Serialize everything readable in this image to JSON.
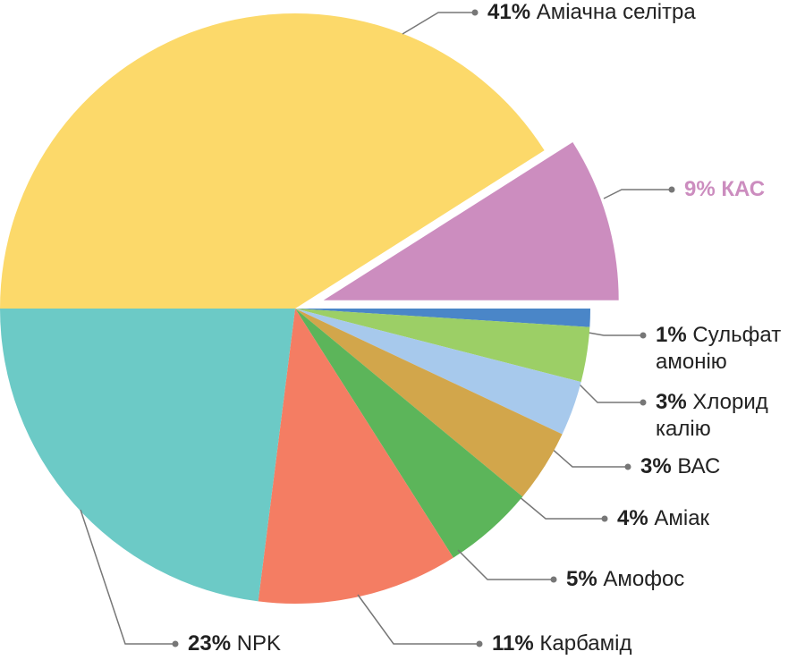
{
  "chart_data": {
    "type": "pie",
    "categories": [
      "Аміачна селітра",
      "КАС",
      "Сульфат амонію",
      "Хлорид калію",
      "ВАС",
      "Аміак",
      "Амофос",
      "Карбамід",
      "NPK"
    ],
    "values": [
      41,
      9,
      1,
      3,
      3,
      4,
      5,
      11,
      23
    ],
    "value_labels": [
      "41%",
      "9%",
      "1%",
      "3%",
      "3%",
      "4%",
      "5%",
      "11%",
      "23%"
    ],
    "colors": [
      "#fcd96a",
      "#cc8dbf",
      "#4a86c8",
      "#9ccf66",
      "#a7c9ec",
      "#d2a64b",
      "#5cb55a",
      "#f47d63",
      "#6ccac6"
    ],
    "exploded": 1
  }
}
